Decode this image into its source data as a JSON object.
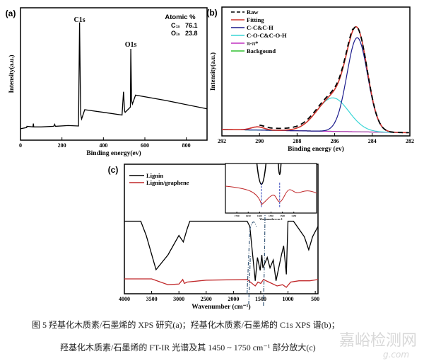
{
  "chart_data": [
    {
      "type": "line",
      "panel_label": "(a)",
      "xlabel": "Binding energy(ev)",
      "ylabel": "Intensity(a.u.)",
      "xlim": [
        0,
        900
      ],
      "ylim": [
        0,
        100
      ],
      "xticks": [
        0,
        200,
        400,
        600,
        800
      ],
      "annotations": {
        "title": "Atomic %",
        "rows": [
          {
            "el": "C",
            "sub": "1s",
            "val": "76.1"
          },
          {
            "el": "O",
            "sub": "1s",
            "val": "23.8"
          }
        ],
        "peaks": [
          {
            "label": "C1s",
            "x": 285
          },
          {
            "label": "O1s",
            "x": 532
          }
        ]
      },
      "series": [
        {
          "color": "#000000",
          "x": [
            0,
            30,
            31,
            60,
            62,
            64,
            100,
            160,
            165,
            168,
            230,
            280,
            285,
            290,
            295,
            310,
            400,
            490,
            497,
            502,
            505,
            530,
            532,
            536,
            540,
            555,
            700,
            900
          ],
          "y": [
            8.6,
            9.5,
            10.5,
            10,
            12.5,
            10,
            10,
            10.5,
            12,
            10.5,
            11,
            10.7,
            89,
            20,
            16,
            23,
            21,
            19,
            36.5,
            22,
            21,
            25,
            69,
            30,
            27.4,
            34,
            30,
            23.7
          ]
        }
      ]
    },
    {
      "type": "line",
      "panel_label": "(b)",
      "xlabel": "Binding energy (ev)",
      "ylabel": "Intensity(a.u.)",
      "xlim": [
        292,
        282
      ],
      "ylim": [
        0,
        100
      ],
      "xticks": [
        292,
        290,
        288,
        286,
        284,
        282
      ],
      "baseline": 5,
      "peaks": [
        {
          "name": "C-C&C-H",
          "center": 284.8,
          "height": 73,
          "sigma": 0.55
        },
        {
          "name": "C-O-C&C-O-H",
          "center": 286.1,
          "height": 26,
          "sigma": 0.85
        },
        {
          "name": "π-π*",
          "center": 290.1,
          "height": 2.5,
          "sigma": 0.35
        }
      ],
      "series": [
        {
          "name": "Raw",
          "color": "#000000",
          "dash": true
        },
        {
          "name": "Fitting",
          "color": "#d0342c"
        },
        {
          "name": "C-C&C-H",
          "color": "#1a1a8c"
        },
        {
          "name": "C-O-C&C-O-H",
          "color": "#38d6d6"
        },
        {
          "name": "π-π*",
          "color": "#c030c0"
        },
        {
          "name": "Backgound",
          "color": "#30c030"
        }
      ]
    },
    {
      "type": "line",
      "panel_label": "(c)",
      "xlabel": "Wavenumber (cm⁻¹)",
      "xlim": [
        4000,
        450
      ],
      "ylim": [
        0,
        100
      ],
      "xticks": [
        4000,
        3500,
        3000,
        2500,
        2000,
        1500,
        1000,
        500
      ],
      "series": [
        {
          "name": "Lignin",
          "color": "#000000",
          "x": [
            4000,
            3700,
            3600,
            3420,
            3200,
            3000,
            2920,
            2850,
            2800,
            1750,
            1700,
            1600,
            1560,
            1510,
            1480,
            1460,
            1420,
            1380,
            1330,
            1270,
            1220,
            1160,
            1120,
            1080,
            1030,
            1000,
            900,
            800,
            700,
            620,
            550,
            450
          ],
          "y": [
            56,
            56,
            45,
            18.6,
            30,
            45,
            40,
            50,
            56,
            56,
            52,
            10,
            28,
            18,
            30,
            20,
            24,
            28,
            20,
            26,
            10,
            22,
            30,
            37,
            15,
            56,
            56,
            50,
            44,
            34,
            44,
            52
          ]
        },
        {
          "name": "Lignin/graphene",
          "color": "#c0282a",
          "x": [
            4000,
            3500,
            3200,
            3000,
            2930,
            2900,
            2850,
            2500,
            1750,
            1600,
            1550,
            1500,
            1450,
            1350,
            1200,
            1100,
            1030,
            950,
            800,
            600,
            450
          ],
          "y": [
            11.5,
            11.5,
            7,
            7.5,
            11,
            8,
            9,
            10.5,
            11,
            6,
            9,
            8,
            11,
            9,
            6,
            7,
            5,
            9,
            10,
            10,
            11
          ]
        }
      ],
      "inset": {
        "xlabel": "Wavenumber cm-1",
        "xlim": [
          1750,
          1350
        ],
        "xticks": [
          1700,
          1650,
          1600,
          1550,
          1500,
          1450
        ],
        "markers": [
          1592,
          1512
        ]
      }
    }
  ],
  "caption": {
    "line1": "图 5 羟基化木质素/石墨烯的 XPS 研究(a)；羟基化木质素/石墨烯的 C1s XPS 谱(b)；",
    "line2": "羟基化木质素/石墨烯的 FT-IR 光谱及其 1450 ~ 1750 cm⁻¹ 部分放大(c)"
  },
  "watermark": {
    "text": "嘉峪检测网",
    "sub": "g.com"
  }
}
